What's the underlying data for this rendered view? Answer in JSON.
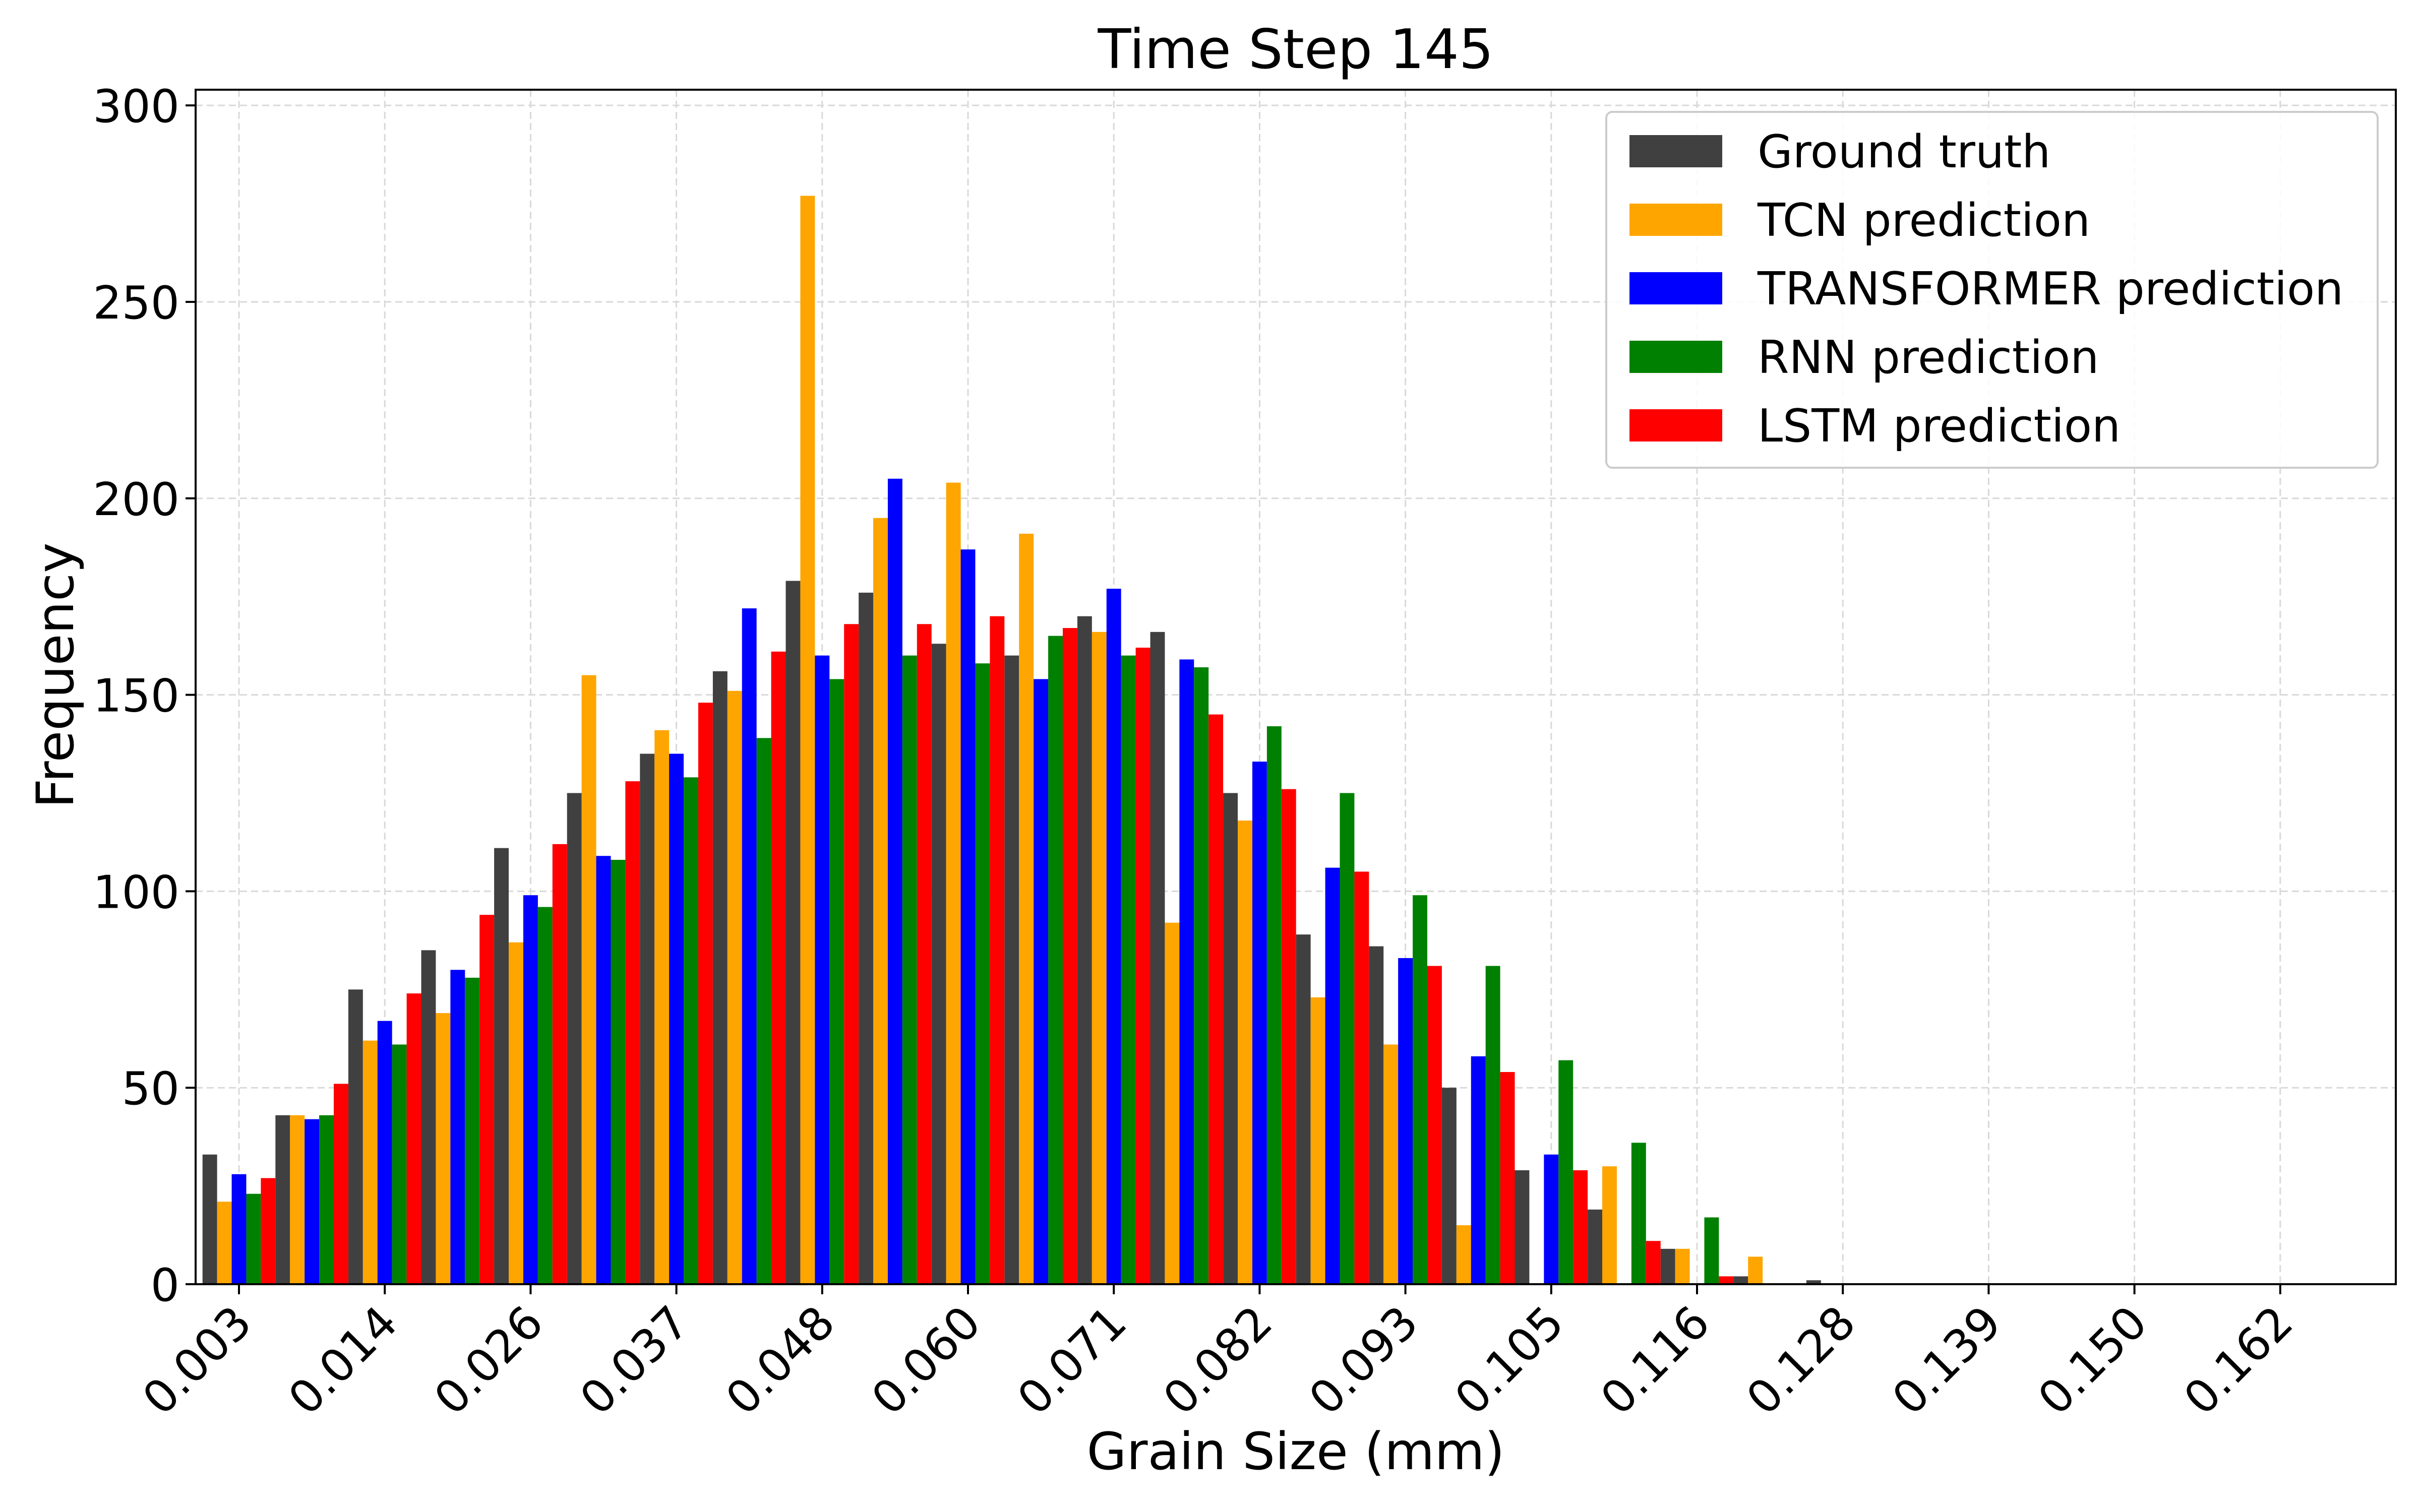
{
  "chart_data": {
    "type": "bar",
    "title": "Time Step 145",
    "xlabel": "Grain Size (mm)",
    "ylabel": "Frequency",
    "x_tick_labels": [
      "0.003",
      "0.014",
      "0.026",
      "0.037",
      "0.048",
      "0.060",
      "0.071",
      "0.082",
      "0.093",
      "0.105",
      "0.116",
      "0.128",
      "0.139",
      "0.150",
      "0.162"
    ],
    "y_ticks": [
      0,
      50,
      100,
      150,
      200,
      250,
      300
    ],
    "ylim": [
      0,
      304
    ],
    "grid": true,
    "legend_position": "top-right",
    "bin_count": 30,
    "series": [
      {
        "name": "Ground truth",
        "color": "#404040",
        "values": [
          33,
          43,
          75,
          85,
          111,
          125,
          135,
          156,
          179,
          176,
          163,
          160,
          170,
          166,
          125,
          89,
          86,
          50,
          29,
          19,
          9,
          2,
          1,
          0,
          0,
          0,
          0,
          0,
          0,
          0
        ]
      },
      {
        "name": "TCN prediction",
        "color": "#ffa500",
        "values": [
          21,
          43,
          62,
          69,
          87,
          155,
          141,
          151,
          277,
          195,
          204,
          191,
          166,
          92,
          118,
          73,
          61,
          15,
          0,
          30,
          9,
          7,
          0,
          0,
          0,
          0,
          0,
          0,
          0,
          0
        ]
      },
      {
        "name": "TRANSFORMER prediction",
        "color": "#0000ff",
        "values": [
          28,
          42,
          67,
          80,
          99,
          109,
          135,
          172,
          160,
          205,
          187,
          154,
          177,
          159,
          133,
          106,
          83,
          58,
          33,
          0,
          0,
          0,
          0,
          0,
          0,
          0,
          0,
          0,
          0,
          0
        ]
      },
      {
        "name": "RNN prediction",
        "color": "#008000",
        "values": [
          23,
          43,
          61,
          78,
          96,
          108,
          129,
          139,
          154,
          160,
          158,
          165,
          160,
          157,
          142,
          125,
          99,
          81,
          57,
          36,
          17,
          0,
          0,
          0,
          0,
          0,
          0,
          0,
          0,
          0
        ]
      },
      {
        "name": "LSTM prediction",
        "color": "#ff0000",
        "values": [
          27,
          51,
          74,
          94,
          112,
          128,
          148,
          161,
          168,
          168,
          170,
          167,
          162,
          145,
          126,
          105,
          81,
          54,
          29,
          11,
          2,
          0,
          0,
          0,
          0,
          0,
          0,
          0,
          0,
          0
        ]
      }
    ]
  }
}
